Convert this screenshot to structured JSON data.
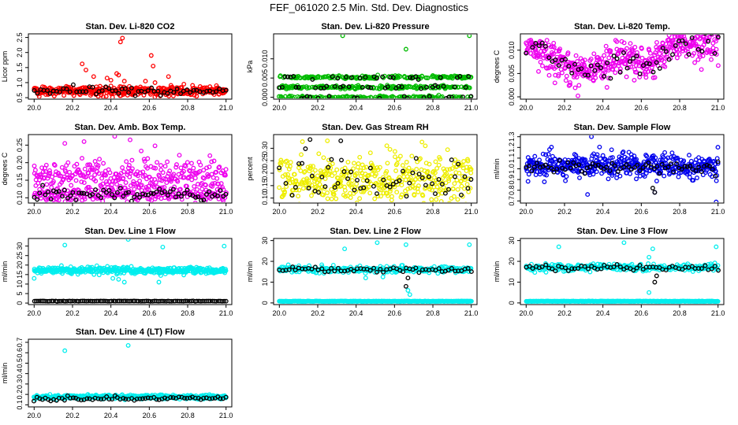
{
  "figure": {
    "title": "FEF_061020  2.5 Min. Std. Dev. Diagnostics"
  },
  "chart_data": [
    {
      "type": "scatter",
      "title": "Stan. Dev. Li-820 CO2",
      "ylabel": "Licor ppm",
      "x_range": [
        20.0,
        21.0
      ],
      "xticks": [
        "20.0",
        "20.2",
        "20.4",
        "20.6",
        "20.8",
        "21.0"
      ],
      "ylim": [
        0.45,
        2.62
      ],
      "yticks": [
        {
          "v": 0.5,
          "label": "0.5"
        },
        {
          "v": 1.0,
          "label": "1.0"
        },
        {
          "v": 1.5,
          "label": "1.5"
        },
        {
          "v": 2.0,
          "label": "2.0"
        },
        {
          "v": 2.5,
          "label": "2.5"
        }
      ],
      "series": [
        {
          "name": "primary",
          "color": "#ff0000",
          "n": 400,
          "base": 0.72,
          "spread": 0.08,
          "outliers": [
            [
              20.25,
              1.62
            ],
            [
              20.27,
              1.42
            ],
            [
              20.31,
              1.2
            ],
            [
              20.38,
              1.15
            ],
            [
              20.4,
              1.08
            ],
            [
              20.43,
              1.3
            ],
            [
              20.44,
              1.25
            ],
            [
              20.45,
              2.35
            ],
            [
              20.46,
              2.48
            ],
            [
              20.47,
              1.05
            ],
            [
              20.58,
              1.05
            ],
            [
              20.61,
              1.9
            ],
            [
              20.62,
              1.55
            ],
            [
              20.63,
              1.0
            ],
            [
              20.7,
              1.2
            ],
            [
              20.78,
              0.95
            ],
            [
              20.95,
              0.9
            ]
          ]
        },
        {
          "name": "secondary",
          "color": "#000000",
          "n": 60,
          "base": 0.72,
          "spread": 0.07,
          "outliers": []
        }
      ]
    },
    {
      "type": "scatter",
      "title": "Stan. Dev. Li-820 Pressure",
      "ylabel": "kPa",
      "x_range": [
        20.0,
        21.0
      ],
      "xticks": [
        "20.0",
        "20.2",
        "20.4",
        "20.6",
        "20.8",
        "21.0"
      ],
      "ylim": [
        -0.0005,
        0.0165
      ],
      "yticks": [
        {
          "v": 0.0,
          "label": "0.000"
        },
        {
          "v": 0.005,
          "label": "0.005"
        },
        {
          "v": 0.01,
          "label": "0.010"
        }
      ],
      "series": [
        {
          "name": "primary",
          "color": "#00bb00",
          "n": 520,
          "levels": [
            0.0,
            0.0026,
            0.0052
          ],
          "jitter": 0.0002,
          "outliers": [
            [
              20.33,
              0.016
            ],
            [
              20.66,
              0.0125
            ],
            [
              20.99,
              0.016
            ]
          ]
        },
        {
          "name": "secondary",
          "color": "#000000",
          "n": 70,
          "levels": [
            0.0,
            0.0026,
            0.0052
          ],
          "jitter": 0.0002,
          "outliers": []
        }
      ]
    },
    {
      "type": "scatter",
      "title": "Stan. Dev. Li-820 Temp.",
      "ylabel": "degrees C",
      "x_range": [
        20.0,
        21.0
      ],
      "xticks": [
        "20.0",
        "20.2",
        "20.4",
        "20.6",
        "20.8",
        "21.0"
      ],
      "ylim": [
        -0.0005,
        0.0135
      ],
      "yticks": [
        {
          "v": 0.0,
          "label": "0.000"
        },
        {
          "v": 0.005,
          "label": "0.005"
        },
        {
          "v": 0.01,
          "label": "0.010"
        }
      ],
      "trend": [
        [
          20.0,
          0.0115
        ],
        [
          20.1,
          0.0095
        ],
        [
          20.2,
          0.0065
        ],
        [
          20.3,
          0.0058
        ],
        [
          20.4,
          0.006
        ],
        [
          20.5,
          0.0082
        ],
        [
          20.6,
          0.0068
        ],
        [
          20.7,
          0.0085
        ],
        [
          20.8,
          0.0115
        ],
        [
          21.0,
          0.0118
        ]
      ],
      "series": [
        {
          "name": "primary",
          "color": "#ee00ee",
          "n": 480,
          "spread": 0.0018,
          "outliers": [
            [
              20.27,
              0.0002
            ],
            [
              20.15,
              0.003
            ],
            [
              20.43,
              0.004
            ]
          ]
        },
        {
          "name": "secondary",
          "color": "#000000",
          "n": 60,
          "spread": 0.0015,
          "outliers": []
        }
      ]
    },
    {
      "type": "scatter",
      "title": "Stan. Dev. Amb. Box Temp.",
      "ylabel": "degrees C",
      "x_range": [
        20.0,
        21.0
      ],
      "xticks": [
        "20.0",
        "20.2",
        "20.4",
        "20.6",
        "20.8",
        "21.0"
      ],
      "ylim": [
        0.085,
        0.28
      ],
      "yticks": [
        {
          "v": 0.1,
          "label": "0.10"
        },
        {
          "v": 0.15,
          "label": "0.15"
        },
        {
          "v": 0.2,
          "label": "0.20"
        },
        {
          "v": 0.25,
          "label": "0.25"
        }
      ],
      "series": [
        {
          "name": "primary-upper",
          "color": "#ee00ee",
          "n": 300,
          "base": 0.163,
          "spread": 0.022,
          "outliers": [
            [
              20.16,
              0.255
            ],
            [
              20.26,
              0.26
            ],
            [
              20.42,
              0.275
            ],
            [
              20.5,
              0.265
            ],
            [
              20.63,
              0.248
            ]
          ]
        },
        {
          "name": "primary-lower",
          "color": "#ee00ee",
          "n": 220,
          "base": 0.11,
          "spread": 0.01,
          "outliers": []
        },
        {
          "name": "secondary",
          "color": "#000000",
          "n": 70,
          "base": 0.112,
          "spread": 0.01,
          "outliers": []
        }
      ]
    },
    {
      "type": "scatter",
      "title": "Stan. Dev. Gas Stream RH",
      "ylabel": "percent",
      "x_range": [
        20.0,
        21.0
      ],
      "xticks": [
        "20.0",
        "20.2",
        "20.4",
        "20.6",
        "20.8",
        "21.0"
      ],
      "ylim": [
        0.08,
        0.355
      ],
      "yticks": [
        {
          "v": 0.1,
          "label": "0.10"
        },
        {
          "v": 0.15,
          "label": "0.15"
        },
        {
          "v": 0.2,
          "label": "0.20"
        },
        {
          "v": 0.25,
          "label": "0.25"
        },
        {
          "v": 0.3,
          "label": "0.30"
        }
      ],
      "series": [
        {
          "name": "primary",
          "color": "#eeee00",
          "n": 420,
          "base": 0.175,
          "spread": 0.05,
          "outliers": [
            [
              20.25,
              0.33
            ],
            [
              20.56,
              0.31
            ]
          ]
        },
        {
          "name": "secondary",
          "color": "#000000",
          "n": 60,
          "base": 0.17,
          "spread": 0.045,
          "outliers": [
            [
              20.16,
              0.335
            ],
            [
              20.32,
              0.33
            ]
          ]
        }
      ]
    },
    {
      "type": "scatter",
      "title": "Stan. Dev. Sample Flow",
      "ylabel": "ml/min",
      "x_range": [
        20.0,
        21.0
      ],
      "xticks": [
        "20.0",
        "20.2",
        "20.4",
        "20.6",
        "20.8",
        "21.0"
      ],
      "ylim": [
        0.68,
        1.32
      ],
      "yticks": [
        {
          "v": 0.7,
          "label": "0.7"
        },
        {
          "v": 0.8,
          "label": "0.8"
        },
        {
          "v": 0.9,
          "label": "0.9"
        },
        {
          "v": 1.0,
          "label": "1.0"
        },
        {
          "v": 1.1,
          "label": "1.1"
        },
        {
          "v": 1.2,
          "label": "1.2"
        },
        {
          "v": 1.3,
          "label": "1.3"
        }
      ],
      "series": [
        {
          "name": "primary",
          "color": "#0000ee",
          "n": 460,
          "base": 1.03,
          "spread": 0.055,
          "outliers": [
            [
              20.34,
              1.3
            ],
            [
              20.32,
              0.76
            ],
            [
              20.67,
              0.78
            ],
            [
              20.99,
              0.69
            ]
          ]
        },
        {
          "name": "secondary",
          "color": "#000000",
          "n": 70,
          "base": 1.02,
          "spread": 0.03,
          "outliers": [
            [
              20.66,
              0.82
            ],
            [
              20.67,
              0.78
            ]
          ]
        }
      ]
    },
    {
      "type": "scatter",
      "title": "Stan. Dev. Line 1 Flow",
      "ylabel": "ml/min",
      "x_range": [
        20.0,
        21.0
      ],
      "xticks": [
        "20.0",
        "20.2",
        "20.4",
        "20.6",
        "20.8",
        "21.0"
      ],
      "ylim": [
        -0.8,
        34
      ],
      "yticks": [
        {
          "v": 0,
          "label": "0"
        },
        {
          "v": 5,
          "label": "5"
        },
        {
          "v": 10,
          "label": "10"
        },
        {
          "v": 15,
          "label": "15"
        },
        {
          "v": 20,
          "label": "20"
        },
        {
          "v": 25,
          "label": "25"
        },
        {
          "v": 30,
          "label": "30"
        }
      ],
      "series": [
        {
          "name": "primary",
          "color": "#00eeee",
          "n": 420,
          "base": 17.2,
          "spread": 0.9,
          "outliers": [
            [
              20.16,
              30.5
            ],
            [
              20.49,
              33.5
            ],
            [
              20.67,
              29.5
            ],
            [
              20.99,
              30
            ],
            [
              20.0,
              13
            ],
            [
              20.41,
              13
            ],
            [
              20.44,
              12.5
            ],
            [
              20.47,
              11
            ],
            [
              20.65,
              11
            ],
            [
              20.66,
              14.5
            ]
          ]
        },
        {
          "name": "secondary",
          "color": "#000000",
          "n": 100,
          "base": 1.0,
          "spread": 0.05,
          "outliers": []
        }
      ]
    },
    {
      "type": "scatter",
      "title": "Stan. Dev. Line 2 Flow",
      "ylabel": "ml/min",
      "x_range": [
        20.0,
        21.0
      ],
      "xticks": [
        "20.0",
        "20.2",
        "20.4",
        "20.6",
        "20.8",
        "21.0"
      ],
      "ylim": [
        -0.8,
        31
      ],
      "yticks": [
        {
          "v": 0,
          "label": "0"
        },
        {
          "v": 10,
          "label": "10"
        },
        {
          "v": 20,
          "label": "20"
        },
        {
          "v": 30,
          "label": "30"
        }
      ],
      "series": [
        {
          "name": "primary-baseline",
          "color": "#00eeee",
          "n": 400,
          "base": 0.8,
          "spread": 0.05,
          "outliers": []
        },
        {
          "name": "primary",
          "color": "#00eeee",
          "n": 260,
          "base": 16.0,
          "spread": 0.8,
          "outliers": [
            [
              20.34,
              26
            ],
            [
              20.51,
              29
            ],
            [
              20.66,
              28
            ],
            [
              20.99,
              28
            ],
            [
              20.67,
              6
            ],
            [
              20.68,
              4
            ],
            [
              20.45,
              12
            ],
            [
              20.54,
              12.5
            ]
          ]
        },
        {
          "name": "secondary",
          "color": "#000000",
          "n": 60,
          "base": 16.0,
          "spread": 0.6,
          "outliers": [
            [
              20.66,
              8
            ],
            [
              20.67,
              12
            ]
          ]
        }
      ]
    },
    {
      "type": "scatter",
      "title": "Stan. Dev. Line 3 Flow",
      "ylabel": "ml/min",
      "x_range": [
        20.0,
        21.0
      ],
      "xticks": [
        "20.0",
        "20.2",
        "20.4",
        "20.6",
        "20.8",
        "21.0"
      ],
      "ylim": [
        -0.8,
        31
      ],
      "yticks": [
        {
          "v": 0,
          "label": "0"
        },
        {
          "v": 10,
          "label": "10"
        },
        {
          "v": 20,
          "label": "20"
        },
        {
          "v": 30,
          "label": "30"
        }
      ],
      "series": [
        {
          "name": "primary-baseline",
          "color": "#00eeee",
          "n": 400,
          "base": 0.8,
          "spread": 0.05,
          "outliers": []
        },
        {
          "name": "primary",
          "color": "#00eeee",
          "n": 260,
          "base": 17.0,
          "spread": 0.8,
          "outliers": [
            [
              20.17,
              27
            ],
            [
              20.51,
              29
            ],
            [
              20.64,
              22
            ],
            [
              20.66,
              26
            ],
            [
              20.99,
              27
            ],
            [
              20.64,
              5
            ]
          ]
        },
        {
          "name": "secondary",
          "color": "#000000",
          "n": 60,
          "base": 17.0,
          "spread": 0.6,
          "outliers": [
            [
              20.67,
              10
            ],
            [
              20.68,
              13
            ]
          ]
        }
      ]
    },
    {
      "type": "scatter",
      "title": "Stan. Dev. Line 4 (LT) Flow",
      "ylabel": "ml/min",
      "x_range": [
        20.0,
        21.0
      ],
      "xticks": [
        "20.0",
        "20.2",
        "20.4",
        "20.6",
        "20.8",
        "21.0"
      ],
      "ylim": [
        0.08,
        0.73
      ],
      "yticks": [
        {
          "v": 0.1,
          "label": "0.1"
        },
        {
          "v": 0.2,
          "label": "0.2"
        },
        {
          "v": 0.3,
          "label": "0.3"
        },
        {
          "v": 0.4,
          "label": "0.4"
        },
        {
          "v": 0.5,
          "label": "0.5"
        },
        {
          "v": 0.6,
          "label": "0.6"
        },
        {
          "v": 0.7,
          "label": "0.7"
        }
      ],
      "series": [
        {
          "name": "primary",
          "color": "#00eeee",
          "n": 420,
          "base": 0.175,
          "spread": 0.01,
          "outliers": [
            [
              20.16,
              0.62
            ],
            [
              20.49,
              0.67
            ]
          ]
        },
        {
          "name": "secondary",
          "color": "#000000",
          "n": 70,
          "base": 0.16,
          "spread": 0.01,
          "outliers": []
        }
      ]
    }
  ]
}
